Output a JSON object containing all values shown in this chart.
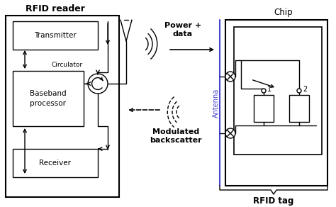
{
  "bg_color": "#ffffff",
  "line_color": "#000000",
  "antenna_color": "#4444cc",
  "title_rfid_reader": "RFID reader",
  "title_chip": "Chip",
  "title_rfid_tag": "RFID tag",
  "label_transmitter": "Transmitter",
  "label_circulator": "Circulator",
  "label_baseband": "Baseband\nprocessor",
  "label_receiver": "Receiver",
  "label_antenna": "Antenna",
  "label_power": "Power +\ndata",
  "label_modulated": "Modulated\nbackscatter",
  "label_1": "1",
  "label_2": "2",
  "figsize": [
    4.74,
    2.92
  ],
  "dpi": 100
}
